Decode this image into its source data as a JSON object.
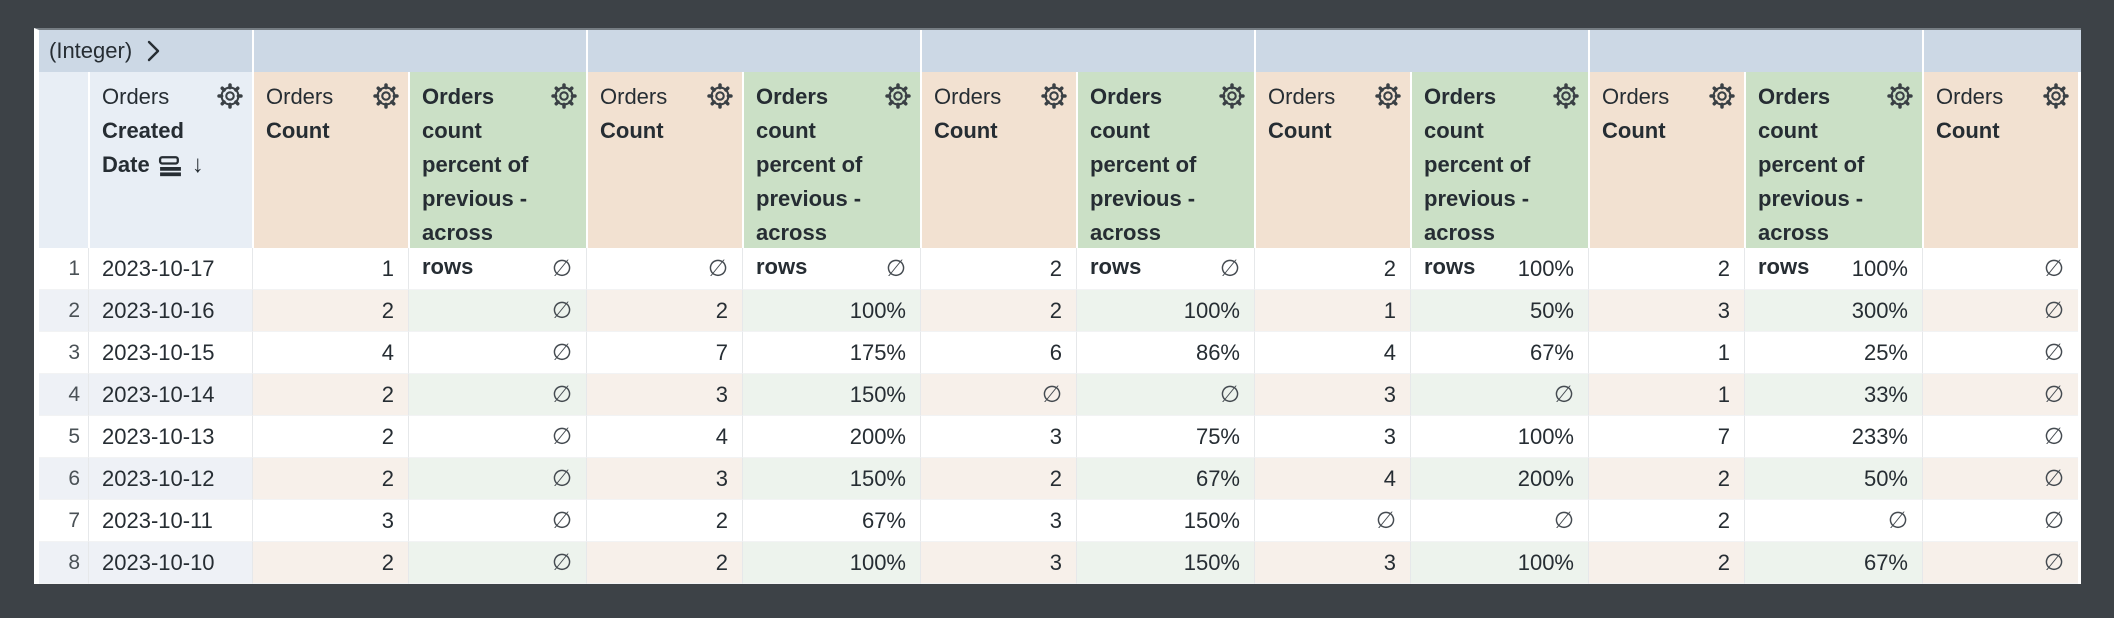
{
  "pivot_band": {
    "label": "(Integer)",
    "values": [
      "",
      "",
      "",
      "",
      "",
      ""
    ]
  },
  "headers": {
    "row_number": "",
    "date": {
      "view": "Orders",
      "field_line1": "Created",
      "field_line2": "Date",
      "sort_arrow": "↓"
    },
    "count": {
      "view": "Orders",
      "field": "Count"
    },
    "percent": {
      "label": "Orders count percent of previous - across rows"
    }
  },
  "table": {
    "null_symbol": "∅",
    "rows": [
      {
        "num": "1",
        "date": "2023-10-17",
        "values": [
          "1",
          "∅",
          "∅",
          "∅",
          "2",
          "∅",
          "2",
          "100%",
          "2",
          "100%",
          "∅"
        ]
      },
      {
        "num": "2",
        "date": "2023-10-16",
        "values": [
          "2",
          "∅",
          "2",
          "100%",
          "2",
          "100%",
          "1",
          "50%",
          "3",
          "300%",
          "∅"
        ]
      },
      {
        "num": "3",
        "date": "2023-10-15",
        "values": [
          "4",
          "∅",
          "7",
          "175%",
          "6",
          "86%",
          "4",
          "67%",
          "1",
          "25%",
          "∅"
        ]
      },
      {
        "num": "4",
        "date": "2023-10-14",
        "values": [
          "2",
          "∅",
          "3",
          "150%",
          "∅",
          "∅",
          "3",
          "∅",
          "1",
          "33%",
          "∅"
        ]
      },
      {
        "num": "5",
        "date": "2023-10-13",
        "values": [
          "2",
          "∅",
          "4",
          "200%",
          "3",
          "75%",
          "3",
          "100%",
          "7",
          "233%",
          "∅"
        ]
      },
      {
        "num": "6",
        "date": "2023-10-12",
        "values": [
          "2",
          "∅",
          "3",
          "150%",
          "2",
          "67%",
          "4",
          "200%",
          "2",
          "50%",
          "∅"
        ]
      },
      {
        "num": "7",
        "date": "2023-10-11",
        "values": [
          "3",
          "∅",
          "2",
          "67%",
          "3",
          "150%",
          "∅",
          "∅",
          "2",
          "∅",
          "∅"
        ]
      },
      {
        "num": "8",
        "date": "2023-10-10",
        "values": [
          "2",
          "∅",
          "2",
          "100%",
          "3",
          "150%",
          "3",
          "100%",
          "2",
          "67%",
          "∅"
        ]
      }
    ]
  },
  "icons": {
    "chevron": "chevron-right-icon",
    "gear": "settings-gear-icon",
    "pivot_rows": "pivot-rows-icon",
    "sort_desc": "arrow-down-icon",
    "null_value": "∅"
  },
  "colors": {
    "frame": "#3d4247",
    "pivot_band": "#ccd8e5",
    "index_header": "#e8eef5",
    "count_header": "#f2e1d1",
    "percent_header": "#cbe0c6",
    "even_row_index": "#eef1f6",
    "even_row_count": "#f7f0ea",
    "even_row_percent": "#edf3ed",
    "text": "#262d33"
  }
}
